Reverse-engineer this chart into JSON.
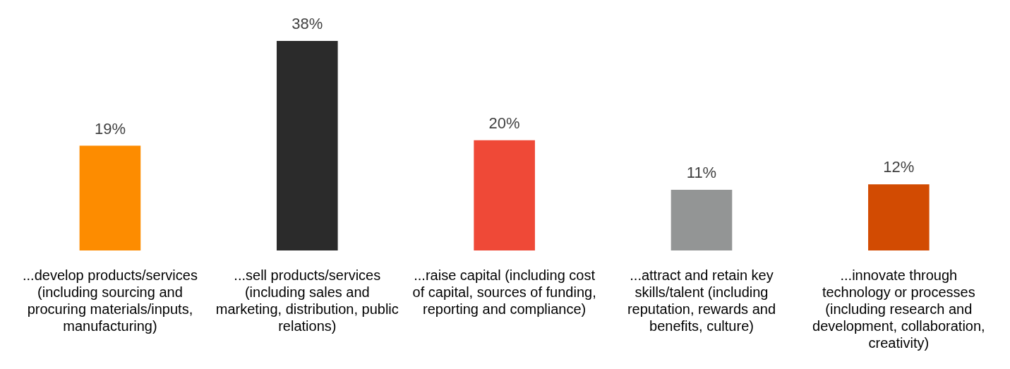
{
  "chart_data": {
    "type": "bar",
    "categories": [
      "...develop products/services (including sourcing and procuring materials/inputs, manufacturing)",
      "...sell products/services (including sales and marketing, distribution, public relations)",
      "...raise capital (including cost of capital, sources of funding, reporting and compliance)",
      "...attract and retain key skills/talent (including reputation, rewards and benefits, culture)",
      "...innovate through technology or processes (including research and development, collaboration, creativity)"
    ],
    "values": [
      19,
      38,
      20,
      11,
      12
    ],
    "colors": [
      "#fd8c00",
      "#2b2b2b",
      "#ef4937",
      "#939595",
      "#d24b02"
    ],
    "value_labels": [
      "19%",
      "38%",
      "20%",
      "11%",
      "12%"
    ],
    "grid": false,
    "legend": false
  }
}
